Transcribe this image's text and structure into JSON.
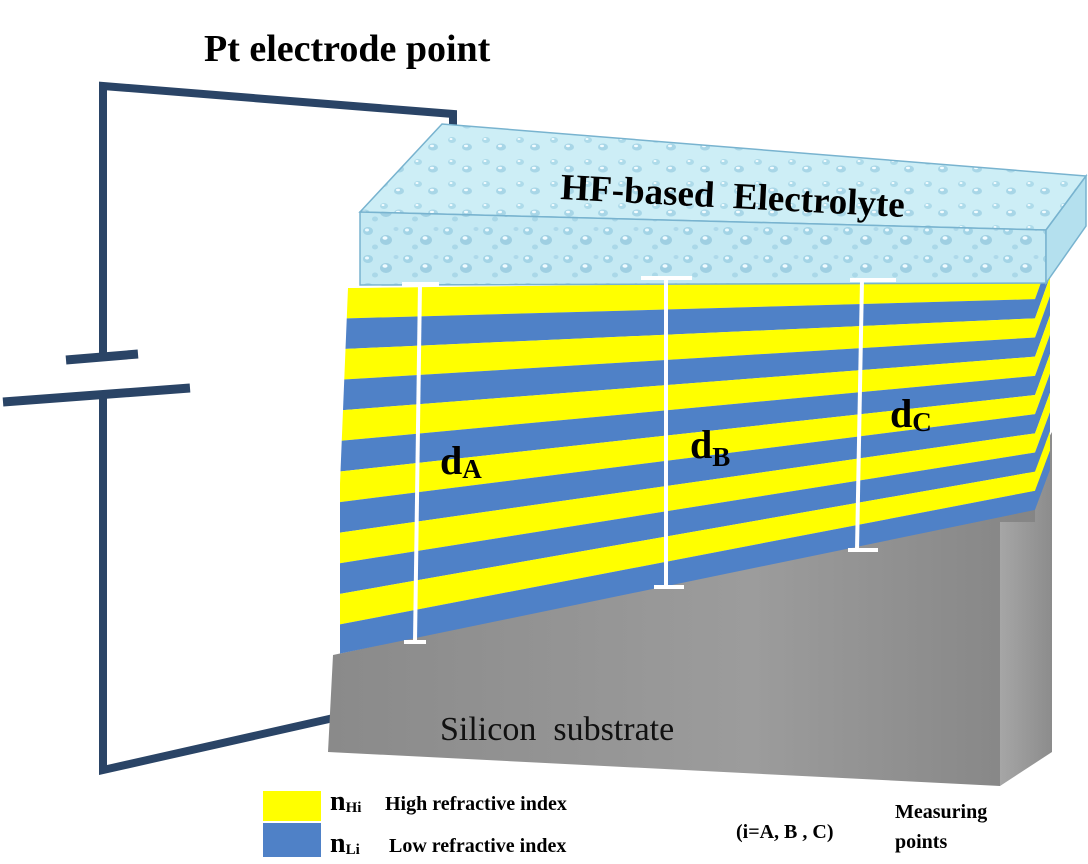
{
  "diagram": {
    "title": "Pt electrode point",
    "electrolyte_label": "HF-based  Electrolyte",
    "substrate_label": "Silicon  substrate",
    "measurements": [
      {
        "symbol": "d",
        "subscript": "A"
      },
      {
        "symbol": "d",
        "subscript": "B"
      },
      {
        "symbol": "d",
        "subscript": "C"
      }
    ],
    "legend": [
      {
        "symbol": "n",
        "subscript": "Hi",
        "label": "High refractive index",
        "color": "#ffff00"
      },
      {
        "symbol": "n",
        "subscript": "Li",
        "label": "Low refractive index",
        "color": "#4f81c7"
      }
    ],
    "note_index": "(i=A, B , C)",
    "note_measuring_line1": "Measuring",
    "note_measuring_line2": "points",
    "colors": {
      "wire": "#2a4466",
      "electrolyte": "#c2e8f2",
      "substrate_front": "#8f8f8f",
      "substrate_side": "#9a9a9a",
      "high_index_layer": "#ffff00",
      "low_index_layer": "#4f81c7",
      "measure_bar": "#ffffff"
    }
  }
}
